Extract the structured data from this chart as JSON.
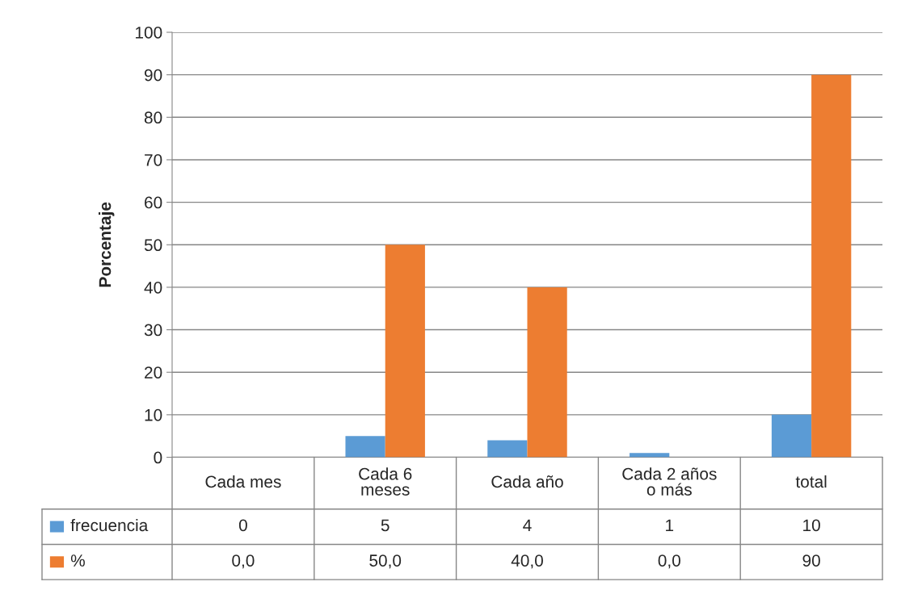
{
  "chart_data": {
    "type": "bar",
    "ylabel": "Porcentaje",
    "categories": [
      "Cada mes",
      "Cada 6\nmeses",
      "Cada año",
      "Cada 2 años\no más",
      "total"
    ],
    "series": [
      {
        "name": "frecuencia",
        "color": "#5b9bd5",
        "values": [
          0,
          5,
          4,
          1,
          10
        ],
        "value_labels": [
          "0",
          "5",
          "4",
          "1",
          "10"
        ]
      },
      {
        "name": "%",
        "color": "#ed7d31",
        "values": [
          0,
          50,
          40,
          0,
          90
        ],
        "value_labels": [
          "0,0",
          "50,0",
          "40,0",
          "0,0",
          "90"
        ]
      }
    ],
    "ylim": [
      0,
      100
    ],
    "yticks": [
      0,
      10,
      20,
      30,
      40,
      50,
      60,
      70,
      80,
      90,
      100
    ],
    "grid": "y",
    "legend": "bottom left"
  }
}
